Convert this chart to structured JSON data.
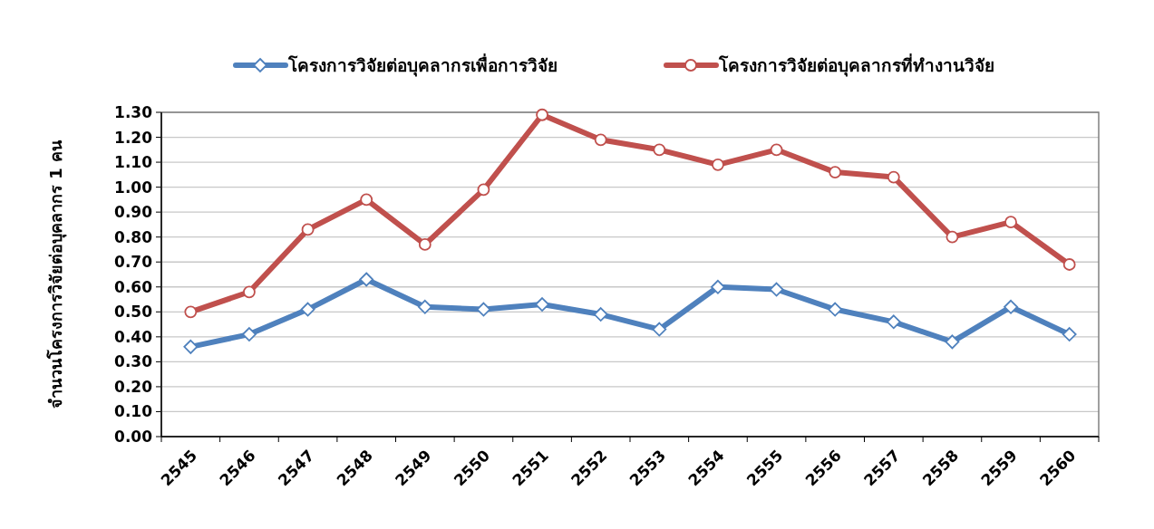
{
  "chart_data": {
    "type": "line",
    "ylabel": "จำนวนโครงการวิจัยต่อบุคลากร 1 คน",
    "categories": [
      "2545",
      "2546",
      "2547",
      "2548",
      "2549",
      "2550",
      "2551",
      "2552",
      "2553",
      "2554",
      "2555",
      "2556",
      "2557",
      "2558",
      "2559",
      "2560"
    ],
    "series": [
      {
        "name": "โครงการวิจัยต่อบุคลากรเพื่อการวิจัย",
        "color": "#4f81bd",
        "marker": "diamond",
        "values": [
          0.36,
          0.41,
          0.51,
          0.63,
          0.52,
          0.51,
          0.53,
          0.49,
          0.43,
          0.6,
          0.59,
          0.51,
          0.46,
          0.38,
          0.52,
          0.41
        ]
      },
      {
        "name": "โครงการวิจัยต่อบุคลากรที่ทำงานวิจัย",
        "color": "#c0504d",
        "marker": "circle",
        "values": [
          0.5,
          0.58,
          0.83,
          0.95,
          0.77,
          0.99,
          1.29,
          1.19,
          1.15,
          1.09,
          1.15,
          1.06,
          1.04,
          0.8,
          0.86,
          0.69
        ]
      }
    ],
    "ylim": [
      0,
      1.3
    ],
    "yticks": [
      {
        "value": 0,
        "label": "0.00"
      },
      {
        "value": 0.1,
        "label": "0.10"
      },
      {
        "value": 0.2,
        "label": "0.20"
      },
      {
        "value": 0.3,
        "label": "0.30"
      },
      {
        "value": 0.4,
        "label": "0.40"
      },
      {
        "value": 0.5,
        "label": "0.50"
      },
      {
        "value": 0.6,
        "label": "0.60"
      },
      {
        "value": 0.7,
        "label": "0.70"
      },
      {
        "value": 0.8,
        "label": "0.80"
      },
      {
        "value": 0.9,
        "label": "0.90"
      },
      {
        "value": 1.0,
        "label": "1.00"
      },
      {
        "value": 1.1,
        "label": "1.10"
      },
      {
        "value": 1.2,
        "label": "1.20"
      },
      {
        "value": 1.3,
        "label": "1.30"
      }
    ],
    "grid": "y",
    "legend": "top",
    "line_style": "solid"
  }
}
